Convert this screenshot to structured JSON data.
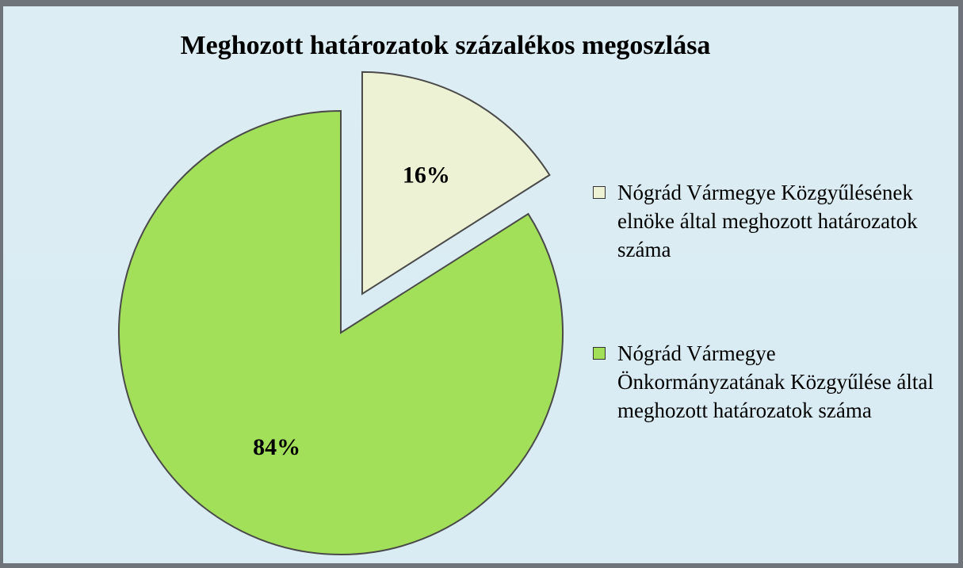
{
  "chart_data": {
    "type": "pie",
    "title": "Meghozott határozatok százalékos megoszlása",
    "series": [
      {
        "name": "Nógrád Vármegye Közgyűlésének elnöke által meghozott határozatok száma",
        "color": "#eef2d4"
      },
      {
        "name": "Nógrád Vármegye Önkormányzatának Közgyűlése által meghozott határozatok száma",
        "color": "#a2e05a"
      }
    ],
    "values": [
      16,
      84
    ],
    "value_labels": [
      "16%",
      "84%"
    ]
  }
}
